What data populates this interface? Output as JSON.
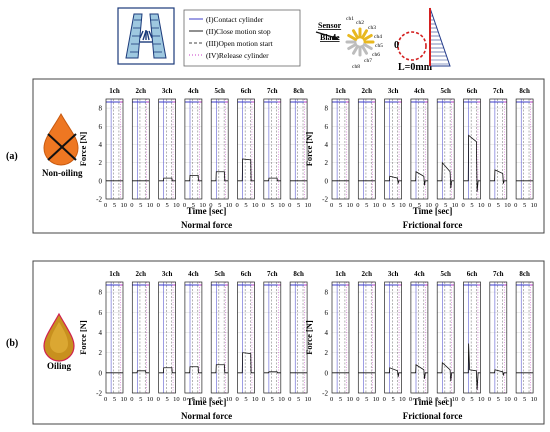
{
  "legend": {
    "entries": [
      {
        "label": "(I)Contact cylinder",
        "style": "solid",
        "color": "#3c3cc8"
      },
      {
        "label": "(II)Close motion stop",
        "style": "solid",
        "color": "#222222"
      },
      {
        "label": "(III)Open motion start",
        "style": "dashed",
        "color": "#444444"
      },
      {
        "label": "(IV)Release cylinder",
        "style": "dotted",
        "color": "#c83cc8"
      }
    ]
  },
  "sensor": {
    "title_line1": "Sensor",
    "title_line2": "Blade",
    "channels": [
      "ch1",
      "ch2",
      "ch3",
      "ch4",
      "ch5",
      "ch6",
      "ch7",
      "ch8"
    ],
    "origin_label": "0",
    "length_label": "L=0mm"
  },
  "panels": [
    {
      "id": "(a)",
      "condition": "Non-oiling",
      "drop_color": "#ee7722"
    },
    {
      "id": "(b)",
      "condition": "Oiling",
      "drop_color": "#c8901e"
    }
  ],
  "axes": {
    "ylabel": "Force [N]",
    "xlabel": "Time [sec]",
    "yticks": [
      "8",
      "6",
      "4",
      "2",
      "0",
      "-2"
    ],
    "xticks": [
      "0",
      "5",
      "10"
    ],
    "channel_titles": [
      "1ch",
      "2ch",
      "3ch",
      "4ch",
      "5ch",
      "6ch",
      "7ch",
      "8ch"
    ]
  },
  "colors": {
    "frame": "#222222",
    "trace": "#111111",
    "contact": "#3c3cc8",
    "release": "#c83cc8",
    "grid": "#d0d0d0",
    "fan": "#e8b820",
    "blade_hatch": "#223a8a",
    "blade_red": "#d42020"
  },
  "chart_data": [
    {
      "type": "line",
      "panel": "(a) Non-oiling",
      "subtitle": "Normal force",
      "xlabel": "Time [sec]",
      "ylabel": "Force [N]",
      "xlim": [
        0,
        10
      ],
      "ylim": [
        -2,
        9
      ],
      "series": [
        {
          "name": "1ch",
          "points": [
            [
              0,
              0
            ],
            [
              10,
              0
            ]
          ]
        },
        {
          "name": "2ch",
          "points": [
            [
              0,
              0
            ],
            [
              10,
              0
            ]
          ]
        },
        {
          "name": "3ch",
          "points": [
            [
              0,
              0
            ],
            [
              2.8,
              0
            ],
            [
              3,
              0.3
            ],
            [
              7.8,
              0.3
            ],
            [
              8,
              0
            ],
            [
              10,
              0
            ]
          ]
        },
        {
          "name": "4ch",
          "points": [
            [
              0,
              0
            ],
            [
              2.8,
              0
            ],
            [
              3,
              0.6
            ],
            [
              7.8,
              0.6
            ],
            [
              8,
              0
            ],
            [
              10,
              0
            ]
          ]
        },
        {
          "name": "5ch",
          "points": [
            [
              0,
              0
            ],
            [
              2.8,
              0
            ],
            [
              3,
              1.0
            ],
            [
              7.8,
              1.0
            ],
            [
              8,
              0
            ],
            [
              10,
              0
            ]
          ]
        },
        {
          "name": "6ch",
          "points": [
            [
              0,
              0
            ],
            [
              2.8,
              0
            ],
            [
              3,
              2.4
            ],
            [
              7.8,
              2.3
            ],
            [
              8,
              0
            ],
            [
              10,
              0
            ]
          ]
        },
        {
          "name": "7ch",
          "points": [
            [
              0,
              0
            ],
            [
              2.8,
              0
            ],
            [
              3,
              0.3
            ],
            [
              7.8,
              0.3
            ],
            [
              8,
              0
            ],
            [
              10,
              0
            ]
          ]
        },
        {
          "name": "8ch",
          "points": [
            [
              0,
              0
            ],
            [
              10,
              0
            ]
          ]
        }
      ]
    },
    {
      "type": "line",
      "panel": "(a) Non-oiling",
      "subtitle": "Frictional force",
      "xlabel": "Time [sec]",
      "ylabel": "Force [N]",
      "xlim": [
        0,
        10
      ],
      "ylim": [
        -2,
        9
      ],
      "series": [
        {
          "name": "1ch",
          "points": [
            [
              0,
              0
            ],
            [
              10,
              0
            ]
          ]
        },
        {
          "name": "2ch",
          "points": [
            [
              0,
              0
            ],
            [
              10,
              0
            ]
          ]
        },
        {
          "name": "3ch",
          "points": [
            [
              0,
              0
            ],
            [
              2.8,
              0
            ],
            [
              3,
              0.5
            ],
            [
              7.6,
              0.3
            ],
            [
              8,
              -0.3
            ],
            [
              8.3,
              0
            ],
            [
              10,
              0
            ]
          ]
        },
        {
          "name": "4ch",
          "points": [
            [
              0,
              0
            ],
            [
              2.8,
              0
            ],
            [
              3,
              1.0
            ],
            [
              7.6,
              0.5
            ],
            [
              8,
              -0.5
            ],
            [
              8.4,
              0
            ],
            [
              10,
              0
            ]
          ]
        },
        {
          "name": "5ch",
          "points": [
            [
              0,
              0
            ],
            [
              2.8,
              0
            ],
            [
              3,
              2.0
            ],
            [
              7.6,
              1.0
            ],
            [
              8,
              -0.8
            ],
            [
              8.5,
              0
            ],
            [
              10,
              0
            ]
          ]
        },
        {
          "name": "6ch",
          "points": [
            [
              0,
              0
            ],
            [
              2.8,
              0
            ],
            [
              3,
              5.0
            ],
            [
              7.6,
              4.3
            ],
            [
              8,
              -1.2
            ],
            [
              8.6,
              0
            ],
            [
              10,
              0
            ]
          ]
        },
        {
          "name": "7ch",
          "points": [
            [
              0,
              0
            ],
            [
              2.8,
              0
            ],
            [
              3,
              1.2
            ],
            [
              7.6,
              0.8
            ],
            [
              8,
              -0.3
            ],
            [
              8.4,
              0
            ],
            [
              10,
              0
            ]
          ]
        },
        {
          "name": "8ch",
          "points": [
            [
              0,
              0
            ],
            [
              10,
              0
            ]
          ]
        }
      ]
    },
    {
      "type": "line",
      "panel": "(b) Oiling",
      "subtitle": "Normal force",
      "xlabel": "Time [sec]",
      "ylabel": "Force [N]",
      "xlim": [
        0,
        10
      ],
      "ylim": [
        -2,
        9
      ],
      "series": [
        {
          "name": "1ch",
          "points": [
            [
              0,
              0
            ],
            [
              10,
              0
            ]
          ]
        },
        {
          "name": "2ch",
          "points": [
            [
              0,
              0
            ],
            [
              2.8,
              0
            ],
            [
              3,
              0.2
            ],
            [
              7.8,
              0.2
            ],
            [
              8,
              0
            ],
            [
              10,
              0
            ]
          ]
        },
        {
          "name": "3ch",
          "points": [
            [
              0,
              0
            ],
            [
              2.8,
              0
            ],
            [
              3,
              0.5
            ],
            [
              7.8,
              0.5
            ],
            [
              8,
              0
            ],
            [
              10,
              0
            ]
          ]
        },
        {
          "name": "4ch",
          "points": [
            [
              0,
              0
            ],
            [
              2.8,
              0
            ],
            [
              3,
              0.6
            ],
            [
              7.8,
              0.6
            ],
            [
              8,
              0
            ],
            [
              10,
              0
            ]
          ]
        },
        {
          "name": "5ch",
          "points": [
            [
              0,
              0
            ],
            [
              2.8,
              0
            ],
            [
              3,
              0.8
            ],
            [
              7.8,
              0.8
            ],
            [
              8,
              0
            ],
            [
              10,
              0
            ]
          ]
        },
        {
          "name": "6ch",
          "points": [
            [
              0,
              0
            ],
            [
              2.8,
              0
            ],
            [
              3,
              2.0
            ],
            [
              7.8,
              1.9
            ],
            [
              8,
              0
            ],
            [
              10,
              0
            ]
          ]
        },
        {
          "name": "7ch",
          "points": [
            [
              0,
              0
            ],
            [
              2.8,
              0
            ],
            [
              3,
              0.1
            ],
            [
              7.8,
              0.1
            ],
            [
              8,
              0
            ],
            [
              10,
              0
            ]
          ]
        },
        {
          "name": "8ch",
          "points": [
            [
              0,
              0
            ],
            [
              10,
              0
            ]
          ]
        }
      ]
    },
    {
      "type": "line",
      "panel": "(b) Oiling",
      "subtitle": "Frictional force",
      "xlabel": "Time [sec]",
      "ylabel": "Force [N]",
      "xlim": [
        0,
        10
      ],
      "ylim": [
        -2,
        9
      ],
      "series": [
        {
          "name": "1ch",
          "points": [
            [
              0,
              0
            ],
            [
              10,
              0
            ]
          ]
        },
        {
          "name": "2ch",
          "points": [
            [
              0,
              0
            ],
            [
              10,
              0
            ]
          ]
        },
        {
          "name": "3ch",
          "points": [
            [
              0,
              0
            ],
            [
              2.8,
              0
            ],
            [
              3,
              0.5
            ],
            [
              7.6,
              0.2
            ],
            [
              8,
              -0.4
            ],
            [
              8.4,
              0
            ],
            [
              10,
              0
            ]
          ]
        },
        {
          "name": "4ch",
          "points": [
            [
              0,
              0
            ],
            [
              2.8,
              0
            ],
            [
              3,
              0.8
            ],
            [
              7.6,
              0.3
            ],
            [
              8,
              -0.6
            ],
            [
              8.5,
              0
            ],
            [
              10,
              0
            ]
          ]
        },
        {
          "name": "5ch",
          "points": [
            [
              0,
              0
            ],
            [
              2.8,
              0
            ],
            [
              3,
              1.0
            ],
            [
              7.6,
              0.3
            ],
            [
              8,
              -0.8
            ],
            [
              8.5,
              0
            ],
            [
              10,
              0
            ]
          ]
        },
        {
          "name": "6ch",
          "points": [
            [
              0,
              0
            ],
            [
              2.8,
              0
            ],
            [
              3,
              2.9
            ],
            [
              3.6,
              0.3
            ],
            [
              7.6,
              0.2
            ],
            [
              8,
              -1.7
            ],
            [
              8.6,
              0
            ],
            [
              10,
              0
            ]
          ]
        },
        {
          "name": "7ch",
          "points": [
            [
              0,
              0
            ],
            [
              2.8,
              0
            ],
            [
              3,
              0.3
            ],
            [
              7.6,
              0.1
            ],
            [
              8,
              -0.2
            ],
            [
              8.4,
              0
            ],
            [
              10,
              0
            ]
          ]
        },
        {
          "name": "8ch",
          "points": [
            [
              0,
              0
            ],
            [
              10,
              0
            ]
          ]
        }
      ]
    }
  ]
}
